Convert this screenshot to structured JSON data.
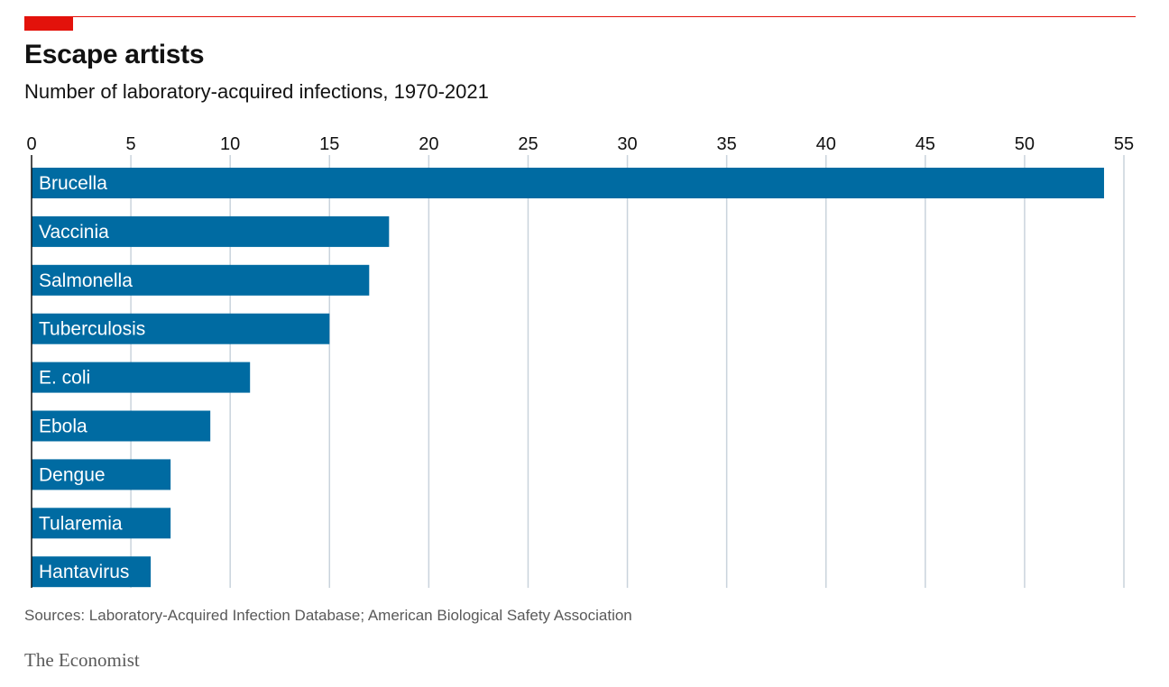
{
  "header": {
    "title": "Escape artists",
    "subtitle": "Number of laboratory-acquired infections, 1970-2021"
  },
  "footer": {
    "source": "Sources: Laboratory-Acquired Infection Database; American Biological Safety Association",
    "brand": "The Economist"
  },
  "colors": {
    "bar": "#006ba2",
    "gridline": "#c9d3dc",
    "accent": "#e3120b",
    "outside_label": "#1f6a9a"
  },
  "chart_data": {
    "type": "bar",
    "orientation": "horizontal",
    "title": "Escape artists",
    "subtitle": "Number of laboratory-acquired infections, 1970-2021",
    "categories": [
      "Brucella",
      "Vaccinia",
      "Salmonella",
      "Tuberculosis",
      "E. coli",
      "Ebola",
      "Dengue",
      "Tularemia",
      "Hantavirus"
    ],
    "values": [
      54,
      18,
      17,
      15,
      11,
      9,
      7,
      7,
      6
    ],
    "xlim": [
      0,
      55
    ],
    "xticks": [
      0,
      5,
      10,
      15,
      20,
      25,
      30,
      35,
      40,
      45,
      50,
      55
    ],
    "xtick_position": "top",
    "grid": true
  }
}
